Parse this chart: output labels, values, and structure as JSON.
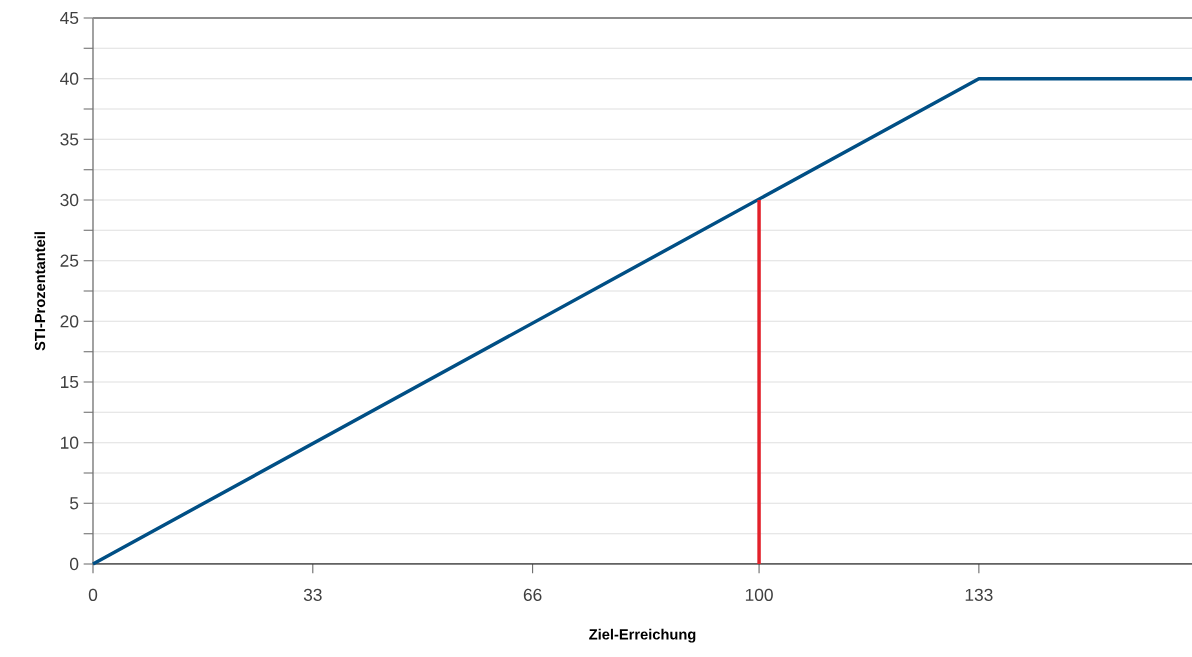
{
  "chart_data": {
    "type": "line",
    "xlabel": "Ziel-Erreichung",
    "ylabel": "STI-Prozentanteil",
    "xlim": [
      0,
      165
    ],
    "ylim": [
      0,
      45
    ],
    "xticks": [
      0,
      33,
      66,
      100,
      133
    ],
    "yticks": [
      0,
      {
        "value": 2.5,
        "label": null
      },
      5,
      {
        "value": 7.5,
        "label": null
      },
      10,
      {
        "value": 12.5,
        "label": null
      },
      15,
      {
        "value": 17.5,
        "label": null
      },
      20,
      {
        "value": 22.5,
        "label": null
      },
      25,
      {
        "value": 27.5,
        "label": null
      },
      30,
      {
        "value": 32.5,
        "label": null
      },
      35,
      {
        "value": 37.5,
        "label": null
      },
      40,
      {
        "value": 42.5,
        "label": null
      },
      45
    ],
    "grid": "y",
    "marker": "none",
    "line_style": "solid",
    "series": [
      {
        "color": "#004f85",
        "x": [
          0,
          133,
          165
        ],
        "values": [
          0,
          40,
          40
        ]
      },
      {
        "color": "#e3202a",
        "x": [
          100,
          100
        ],
        "values": [
          0,
          30
        ]
      }
    ]
  }
}
